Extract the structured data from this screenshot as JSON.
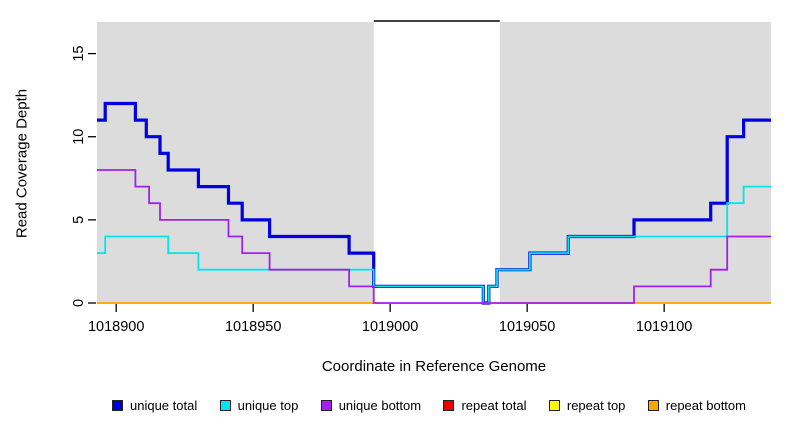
{
  "chart_data": {
    "type": "line",
    "subtype": "step",
    "xlabel": "Coordinate in Reference Genome",
    "ylabel": "Read Coverage Depth",
    "xlim": [
      1018893,
      1019139
    ],
    "ylim": [
      0,
      16.9
    ],
    "x_ticks": [
      1018900,
      1018950,
      1019000,
      1019050,
      1019100
    ],
    "y_ticks": [
      0,
      5,
      10,
      15
    ],
    "grid": false,
    "background": "#dcdcdc",
    "tick_color": "#000000",
    "mask_region": {
      "x_start": 1018994,
      "x_end": 1019040,
      "fill": "#ffffff",
      "top_border_color": "#000000"
    },
    "series": [
      {
        "name": "repeat total",
        "color": "#e60000",
        "width": 1.6,
        "layer": "under",
        "steps": [
          [
            1018893,
            0
          ]
        ]
      },
      {
        "name": "repeat top",
        "color": "#ffff00",
        "width": 1.6,
        "layer": "under",
        "steps": [
          [
            1018893,
            0
          ]
        ]
      },
      {
        "name": "repeat bottom",
        "color": "#ffa500",
        "width": 1.6,
        "layer": "under",
        "steps": [
          [
            1018893,
            0
          ]
        ]
      },
      {
        "name": "unique total",
        "color": "#0000e0",
        "width": 3.2,
        "layer": "over",
        "steps": [
          [
            1018893,
            11
          ],
          [
            1018896,
            12
          ],
          [
            1018907,
            11
          ],
          [
            1018911,
            10
          ],
          [
            1018916,
            9
          ],
          [
            1018919,
            8
          ],
          [
            1018930,
            7
          ],
          [
            1018941,
            6
          ],
          [
            1018946,
            5
          ],
          [
            1018956,
            4
          ],
          [
            1018985,
            3
          ],
          [
            1018994,
            1
          ],
          [
            1019034,
            0
          ],
          [
            1019036,
            1
          ],
          [
            1019039,
            2
          ],
          [
            1019051,
            3
          ],
          [
            1019065,
            4
          ],
          [
            1019089,
            5
          ],
          [
            1019117,
            6
          ],
          [
            1019123,
            10
          ],
          [
            1019129,
            11
          ]
        ]
      },
      {
        "name": "unique top",
        "color": "#00e5ee",
        "width": 1.8,
        "layer": "over",
        "steps": [
          [
            1018893,
            3
          ],
          [
            1018896,
            4
          ],
          [
            1018919,
            3
          ],
          [
            1018930,
            2
          ],
          [
            1018994,
            1
          ],
          [
            1019034,
            0
          ],
          [
            1019036,
            1
          ],
          [
            1019039,
            2
          ],
          [
            1019051,
            3
          ],
          [
            1019065,
            4
          ],
          [
            1019123,
            6
          ],
          [
            1019129,
            7
          ]
        ]
      },
      {
        "name": "unique bottom",
        "color": "#a020f0",
        "width": 1.8,
        "layer": "over",
        "steps": [
          [
            1018893,
            8
          ],
          [
            1018907,
            7
          ],
          [
            1018912,
            6
          ],
          [
            1018916,
            5
          ],
          [
            1018941,
            4
          ],
          [
            1018946,
            3
          ],
          [
            1018956,
            2
          ],
          [
            1018985,
            1
          ],
          [
            1018994,
            0
          ],
          [
            1019089,
            1
          ],
          [
            1019117,
            2
          ],
          [
            1019123,
            4
          ]
        ]
      }
    ],
    "legend_position": "bottom",
    "legend": [
      {
        "label": "unique total",
        "color": "#0000cd"
      },
      {
        "label": "unique top",
        "color": "#00e5ee"
      },
      {
        "label": "unique bottom",
        "color": "#a020f0"
      },
      {
        "label": "repeat total",
        "color": "#e60000"
      },
      {
        "label": "repeat top",
        "color": "#ffff00"
      },
      {
        "label": "repeat bottom",
        "color": "#ffa500"
      }
    ]
  }
}
